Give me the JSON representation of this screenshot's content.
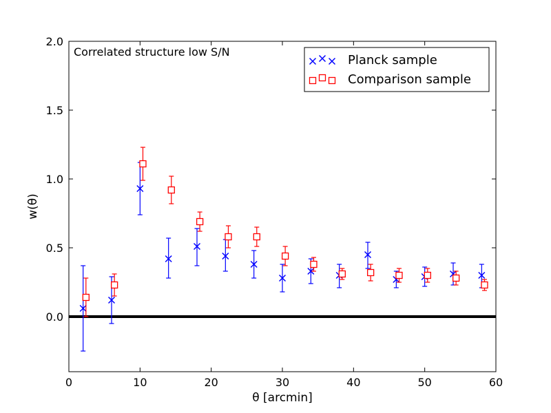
{
  "chart_data": {
    "type": "scatter",
    "annotation": "Correlated structure low S/N",
    "xlabel": "θ [arcmin]",
    "ylabel": "w(θ)",
    "xlim": [
      0,
      60
    ],
    "ylim": [
      -0.4,
      2.0
    ],
    "xticks": [
      0,
      10,
      20,
      30,
      40,
      50,
      60
    ],
    "xtick_labels": [
      "0",
      "10",
      "20",
      "30",
      "40",
      "50",
      "60"
    ],
    "yticks": [
      0.0,
      0.5,
      1.0,
      1.5,
      2.0
    ],
    "ytick_labels": [
      "0.0",
      "0.5",
      "1.0",
      "1.5",
      "2.0"
    ],
    "zero_line": 0.0,
    "legend_position": "top-right",
    "series": [
      {
        "name": "Planck sample",
        "marker": "x",
        "color": "#0000ff",
        "x": [
          2,
          6,
          10,
          14,
          18,
          22,
          26,
          30,
          34,
          38,
          42,
          46,
          50,
          54,
          58
        ],
        "y": [
          0.06,
          0.12,
          0.93,
          0.42,
          0.51,
          0.44,
          0.38,
          0.28,
          0.33,
          0.3,
          0.45,
          0.27,
          0.29,
          0.31,
          0.3
        ],
        "yerr_low": [
          0.31,
          0.17,
          0.19,
          0.14,
          0.14,
          0.11,
          0.1,
          0.1,
          0.09,
          0.09,
          0.1,
          0.06,
          0.07,
          0.08,
          0.09
        ],
        "yerr_high": [
          0.31,
          0.17,
          0.19,
          0.15,
          0.13,
          0.12,
          0.1,
          0.1,
          0.09,
          0.08,
          0.09,
          0.06,
          0.07,
          0.08,
          0.08
        ]
      },
      {
        "name": "Comparison sample",
        "marker": "square",
        "color": "#ff0000",
        "x": [
          2.4,
          6.4,
          10.4,
          14.4,
          18.4,
          22.4,
          26.4,
          30.4,
          34.4,
          38.4,
          42.4,
          46.4,
          50.4,
          54.4,
          58.4
        ],
        "y": [
          0.14,
          0.23,
          1.11,
          0.92,
          0.69,
          0.58,
          0.58,
          0.44,
          0.38,
          0.31,
          0.32,
          0.3,
          0.3,
          0.28,
          0.23
        ],
        "yerr_low": [
          0.14,
          0.08,
          0.12,
          0.1,
          0.07,
          0.08,
          0.07,
          0.07,
          0.05,
          0.04,
          0.06,
          0.05,
          0.05,
          0.05,
          0.04
        ],
        "yerr_high": [
          0.14,
          0.08,
          0.12,
          0.1,
          0.07,
          0.08,
          0.07,
          0.07,
          0.05,
          0.04,
          0.06,
          0.05,
          0.05,
          0.05,
          0.04
        ]
      }
    ]
  }
}
